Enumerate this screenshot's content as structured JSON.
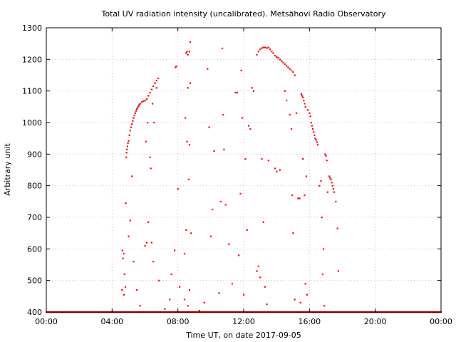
{
  "chart_data": {
    "type": "scatter",
    "title": "Total UV radiation intensity (uncalibrated). Metsähovi Radio Observatory",
    "xlabel": "Time UT, on date 2017-09-05",
    "ylabel": "Arbitrary unit",
    "xlim": [
      0,
      24
    ],
    "ylim": [
      400,
      1300
    ],
    "x_ticks": [
      {
        "value": 0,
        "label": "00:00"
      },
      {
        "value": 4,
        "label": "04:00"
      },
      {
        "value": 8,
        "label": "08:00"
      },
      {
        "value": 12,
        "label": "12:00"
      },
      {
        "value": 16,
        "label": "16:00"
      },
      {
        "value": 20,
        "label": "20:00"
      },
      {
        "value": 24,
        "label": "00:00"
      }
    ],
    "y_ticks": [
      {
        "value": 400,
        "label": "400"
      },
      {
        "value": 500,
        "label": "500"
      },
      {
        "value": 600,
        "label": "600"
      },
      {
        "value": 700,
        "label": "700"
      },
      {
        "value": 800,
        "label": "800"
      },
      {
        "value": 900,
        "label": "900"
      },
      {
        "value": 1000,
        "label": "1000"
      },
      {
        "value": 1100,
        "label": "1100"
      },
      {
        "value": 1200,
        "label": "1200"
      },
      {
        "value": 1300,
        "label": "1300"
      }
    ],
    "grid": true,
    "series_color": "#ff0000",
    "series": [
      {
        "points": [
          [
            0.0,
            400
          ],
          [
            0.5,
            400
          ],
          [
            1.0,
            400
          ],
          [
            1.5,
            400
          ],
          [
            2.0,
            400
          ],
          [
            2.5,
            400
          ],
          [
            3.0,
            400
          ],
          [
            3.5,
            400
          ],
          [
            4.0,
            400
          ],
          [
            4.5,
            400
          ],
          [
            4.6,
            470
          ],
          [
            4.62,
            595
          ],
          [
            4.65,
            570
          ],
          [
            4.7,
            585
          ],
          [
            4.72,
            455
          ],
          [
            4.75,
            520
          ],
          [
            4.8,
            480
          ],
          [
            4.83,
            745
          ],
          [
            4.85,
            890
          ],
          [
            4.88,
            905
          ],
          [
            4.9,
            915
          ],
          [
            4.93,
            925
          ],
          [
            4.96,
            935
          ],
          [
            5.0,
            942
          ],
          [
            5.05,
            960
          ],
          [
            5.1,
            975
          ],
          [
            5.15,
            985
          ],
          [
            5.2,
            995
          ],
          [
            5.25,
            1005
          ],
          [
            5.3,
            1015
          ],
          [
            5.35,
            1023
          ],
          [
            5.4,
            1030
          ],
          [
            5.45,
            1037
          ],
          [
            5.5,
            1043
          ],
          [
            5.55,
            1048
          ],
          [
            5.6,
            1052
          ],
          [
            5.65,
            1057
          ],
          [
            5.7,
            1060
          ],
          [
            5.8,
            1065
          ],
          [
            5.9,
            1068
          ],
          [
            6.0,
            1070
          ],
          [
            6.1,
            1075
          ],
          [
            6.2,
            1085
          ],
          [
            6.3,
            1095
          ],
          [
            6.4,
            1105
          ],
          [
            6.5,
            1115
          ],
          [
            6.6,
            1125
          ],
          [
            6.7,
            1133
          ],
          [
            6.8,
            1140
          ],
          [
            5.2,
            830
          ],
          [
            5.1,
            690
          ],
          [
            5.0,
            640
          ],
          [
            5.3,
            560
          ],
          [
            5.5,
            470
          ],
          [
            5.7,
            420
          ],
          [
            6.0,
            610
          ],
          [
            6.1,
            620
          ],
          [
            6.2,
            685
          ],
          [
            6.05,
            940
          ],
          [
            6.15,
            1000
          ],
          [
            6.3,
            890
          ],
          [
            6.35,
            855
          ],
          [
            6.4,
            620
          ],
          [
            6.45,
            1060
          ],
          [
            6.5,
            560
          ],
          [
            6.55,
            1000
          ],
          [
            6.7,
            1110
          ],
          [
            6.85,
            500
          ],
          [
            7.2,
            410
          ],
          [
            7.5,
            440
          ],
          [
            7.6,
            520
          ],
          [
            7.8,
            595
          ],
          [
            7.85,
            1175
          ],
          [
            7.9,
            1178
          ],
          [
            8.0,
            790
          ],
          [
            8.1,
            480
          ],
          [
            8.4,
            585
          ],
          [
            8.45,
            1015
          ],
          [
            8.5,
            1220
          ],
          [
            8.55,
            1225
          ],
          [
            8.6,
            1215
          ],
          [
            8.7,
            1225
          ],
          [
            8.75,
            1255
          ],
          [
            8.55,
            940
          ],
          [
            8.7,
            930
          ],
          [
            8.6,
            1110
          ],
          [
            8.75,
            1125
          ],
          [
            8.5,
            660
          ],
          [
            8.65,
            820
          ],
          [
            8.8,
            650
          ],
          [
            8.4,
            440
          ],
          [
            8.6,
            420
          ],
          [
            8.7,
            470
          ],
          [
            9.3,
            405
          ],
          [
            9.6,
            430
          ],
          [
            9.8,
            1170
          ],
          [
            9.9,
            985
          ],
          [
            10.0,
            640
          ],
          [
            10.1,
            725
          ],
          [
            10.2,
            910
          ],
          [
            10.5,
            460
          ],
          [
            10.6,
            750
          ],
          [
            10.7,
            1235
          ],
          [
            10.75,
            1025
          ],
          [
            10.8,
            915
          ],
          [
            10.9,
            740
          ],
          [
            11.1,
            615
          ],
          [
            11.3,
            490
          ],
          [
            11.5,
            1095
          ],
          [
            11.6,
            1095
          ],
          [
            11.7,
            580
          ],
          [
            11.8,
            775
          ],
          [
            11.85,
            1165
          ],
          [
            11.9,
            1015
          ],
          [
            12.0,
            455
          ],
          [
            12.1,
            885
          ],
          [
            12.2,
            660
          ],
          [
            12.3,
            990
          ],
          [
            12.4,
            980
          ],
          [
            12.5,
            1110
          ],
          [
            12.6,
            1100
          ],
          [
            12.8,
            1215
          ],
          [
            12.9,
            1225
          ],
          [
            13.0,
            1232
          ],
          [
            13.1,
            1236
          ],
          [
            13.2,
            1238
          ],
          [
            13.3,
            1238
          ],
          [
            13.4,
            1236
          ],
          [
            13.5,
            1238
          ],
          [
            13.6,
            1232
          ],
          [
            13.7,
            1225
          ],
          [
            13.8,
            1220
          ],
          [
            12.8,
            530
          ],
          [
            12.9,
            545
          ],
          [
            13.0,
            510
          ],
          [
            13.1,
            885
          ],
          [
            13.2,
            685
          ],
          [
            13.3,
            480
          ],
          [
            13.4,
            425
          ],
          [
            13.5,
            880
          ],
          [
            13.9,
            1212
          ],
          [
            14.0,
            1208
          ],
          [
            14.1,
            1205
          ],
          [
            14.2,
            1200
          ],
          [
            14.3,
            1195
          ],
          [
            14.4,
            1190
          ],
          [
            14.5,
            1185
          ],
          [
            14.6,
            1180
          ],
          [
            14.7,
            1175
          ],
          [
            14.8,
            1170
          ],
          [
            14.9,
            1165
          ],
          [
            15.0,
            1160
          ],
          [
            15.1,
            1150
          ],
          [
            13.9,
            855
          ],
          [
            14.0,
            845
          ],
          [
            14.2,
            850
          ],
          [
            14.5,
            1100
          ],
          [
            14.6,
            1070
          ],
          [
            14.8,
            1025
          ],
          [
            14.9,
            980
          ],
          [
            14.95,
            770
          ],
          [
            15.0,
            650
          ],
          [
            15.1,
            440
          ],
          [
            15.2,
            1030
          ],
          [
            15.3,
            760
          ],
          [
            15.4,
            760
          ],
          [
            15.45,
            430
          ],
          [
            15.5,
            1090
          ],
          [
            15.55,
            1085
          ],
          [
            15.6,
            1080
          ],
          [
            15.65,
            1070
          ],
          [
            15.7,
            1060
          ],
          [
            15.75,
            1050
          ],
          [
            15.6,
            885
          ],
          [
            15.7,
            770
          ],
          [
            15.8,
            830
          ],
          [
            15.75,
            490
          ],
          [
            15.85,
            455
          ],
          [
            15.9,
            1040
          ],
          [
            16.0,
            1030
          ],
          [
            16.05,
            1020
          ],
          [
            16.1,
            1000
          ],
          [
            16.15,
            990
          ],
          [
            16.2,
            980
          ],
          [
            16.25,
            970
          ],
          [
            16.3,
            960
          ],
          [
            16.35,
            950
          ],
          [
            16.4,
            945
          ],
          [
            16.45,
            938
          ],
          [
            16.5,
            930
          ],
          [
            16.6,
            800
          ],
          [
            16.7,
            815
          ],
          [
            16.75,
            700
          ],
          [
            16.8,
            520
          ],
          [
            16.85,
            600
          ],
          [
            16.9,
            420
          ],
          [
            16.95,
            900
          ],
          [
            17.0,
            895
          ],
          [
            17.05,
            880
          ],
          [
            17.1,
            780
          ],
          [
            17.2,
            830
          ],
          [
            17.25,
            825
          ],
          [
            17.3,
            820
          ],
          [
            17.35,
            810
          ],
          [
            17.4,
            800
          ],
          [
            17.45,
            790
          ],
          [
            17.5,
            780
          ],
          [
            17.6,
            750
          ],
          [
            17.7,
            665
          ],
          [
            17.75,
            530
          ],
          [
            17.5,
            400
          ],
          [
            18.0,
            400
          ],
          [
            18.5,
            400
          ],
          [
            19.0,
            400
          ],
          [
            19.5,
            400
          ],
          [
            20.0,
            400
          ],
          [
            20.5,
            400
          ],
          [
            21.0,
            400
          ],
          [
            21.5,
            400
          ],
          [
            22.0,
            400
          ],
          [
            22.5,
            400
          ],
          [
            23.0,
            400
          ],
          [
            23.5,
            400
          ],
          [
            24.0,
            400
          ]
        ]
      }
    ]
  }
}
